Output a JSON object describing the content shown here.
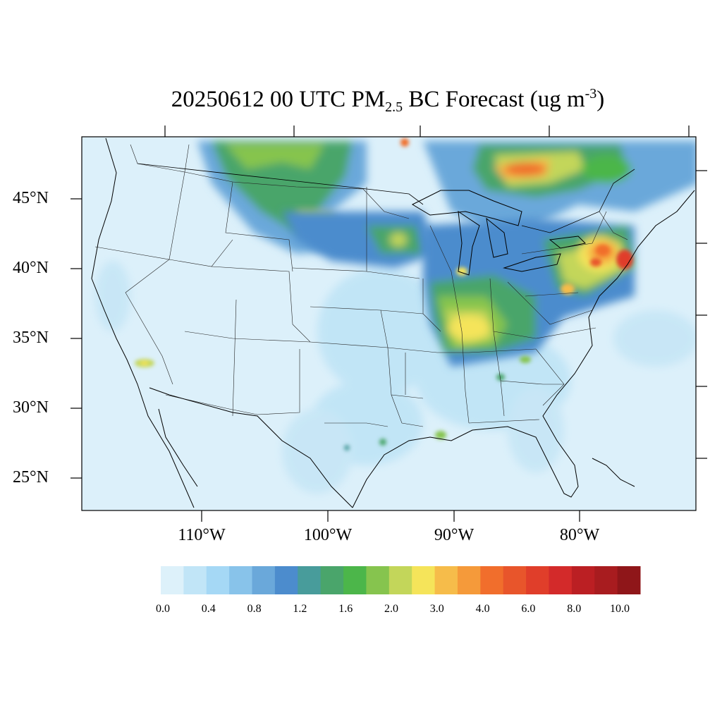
{
  "map": {
    "title_main": "20250612 00 UTC PM",
    "title_sub": "2.5",
    "title_mid": " BC Forecast (ug m",
    "title_sup": "-3",
    "title_end": ")",
    "latitude_labels": [
      "45°N",
      "40°N",
      "35°N",
      "30°N",
      "25°N"
    ],
    "longitude_labels": [
      "110°W",
      "100°W",
      "90°W",
      "80°W"
    ],
    "background_color": "#dcf0fa",
    "hotspots": [
      "Northern Plains smoke band",
      "Southern Canada plume",
      "Ohio Valley plume",
      "Northeast corridor maximum"
    ]
  },
  "colorbar": {
    "labels": [
      "0.0",
      "0.4",
      "0.8",
      "1.2",
      "1.6",
      "2.0",
      "3.0",
      "4.0",
      "6.0",
      "8.0",
      "10.0"
    ],
    "colors": [
      "#ddf1fa",
      "#c1e5f7",
      "#a5d8f5",
      "#88c3ea",
      "#6aa8da",
      "#4c8ccd",
      "#489c9b",
      "#4aa56b",
      "#4cb64a",
      "#86c44e",
      "#c3d65a",
      "#f5e45a",
      "#f6bc4a",
      "#f59a3a",
      "#f16e2c",
      "#e8552b",
      "#e03e2a",
      "#d32a2a",
      "#bb1f23",
      "#a81c1f",
      "#8f1619"
    ]
  }
}
